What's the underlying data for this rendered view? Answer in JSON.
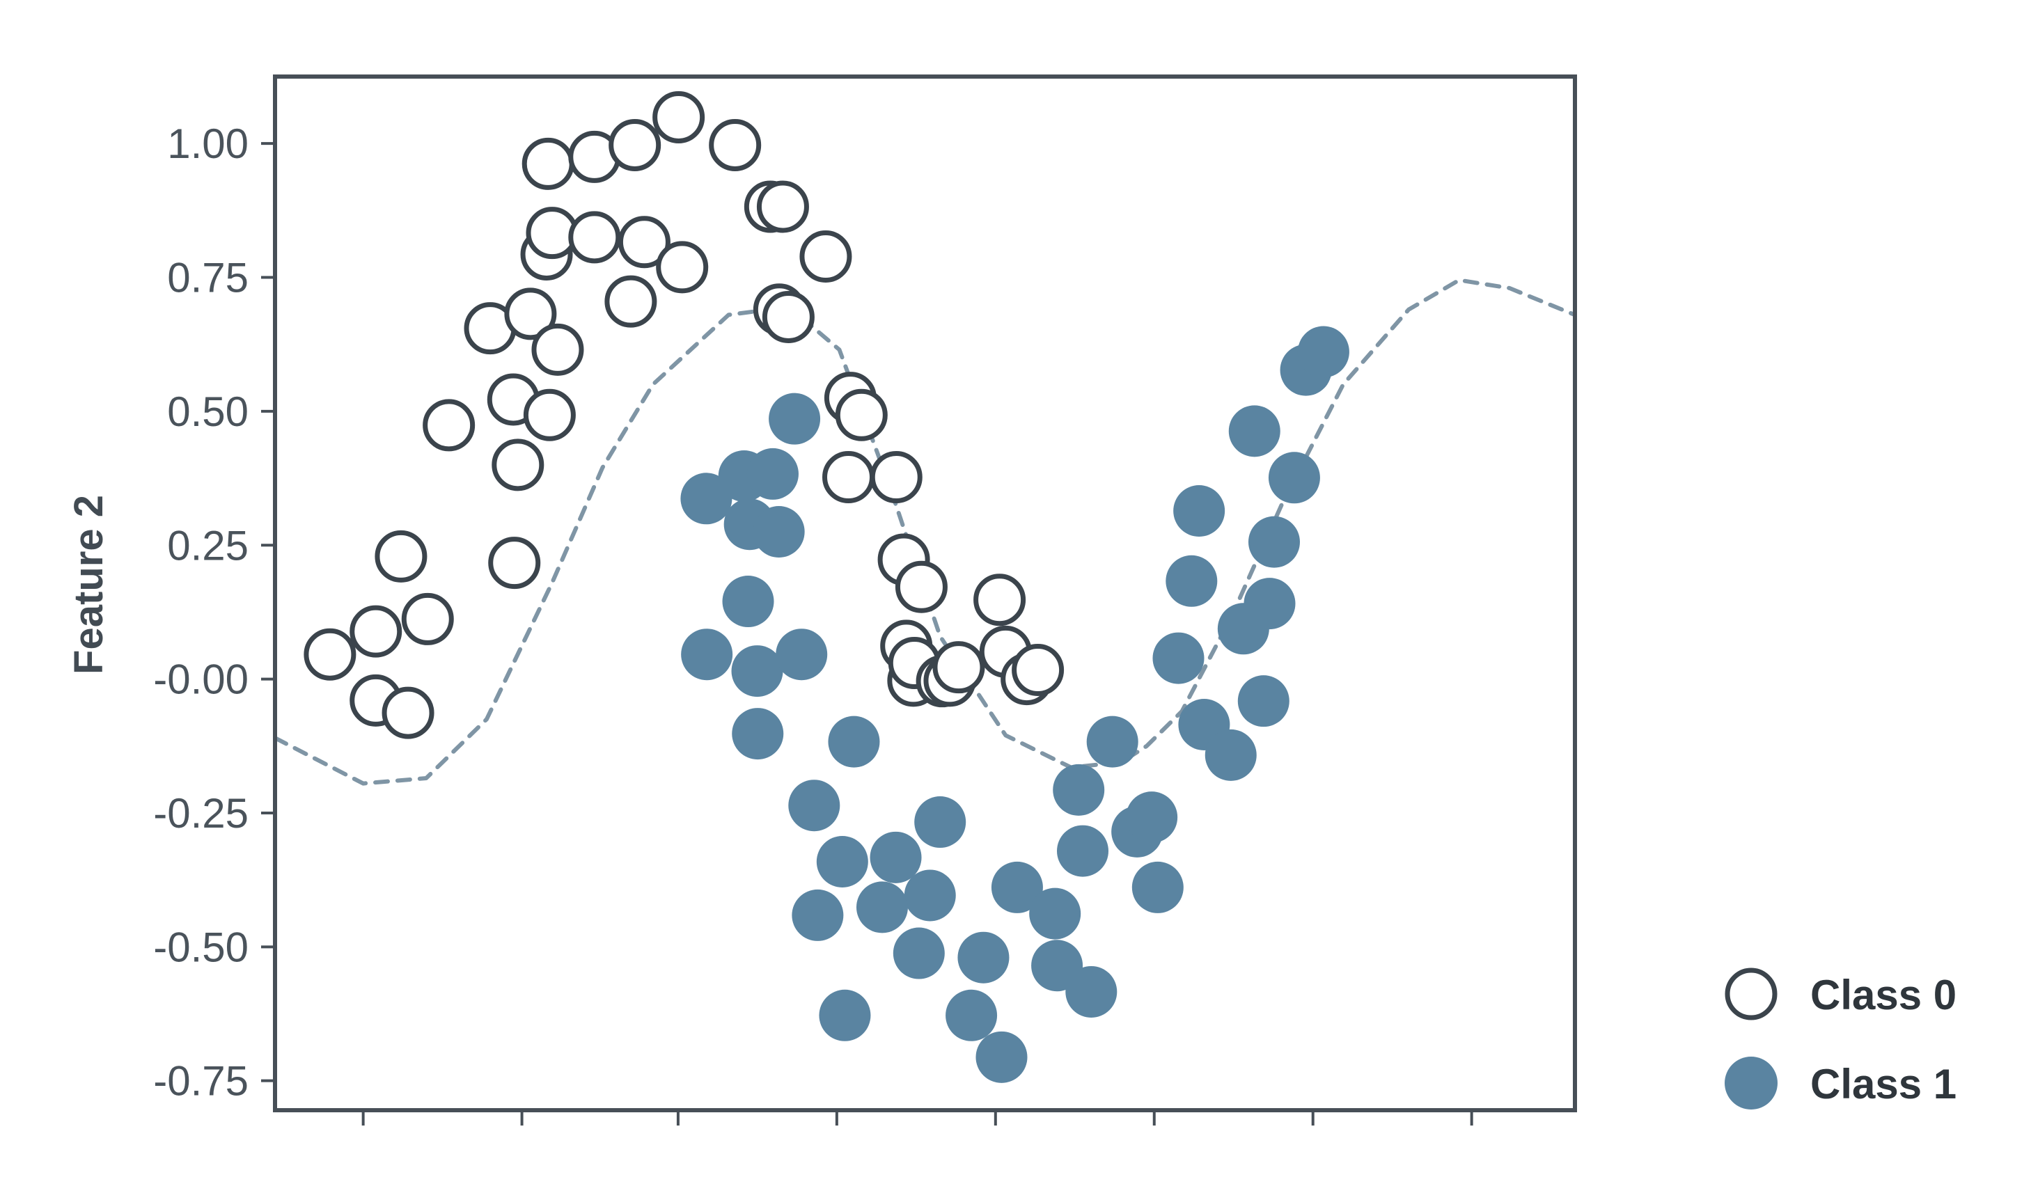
{
  "colors": {
    "frame": "#474f57",
    "class0_edge": "#3b444c",
    "class1_fill": "#5a84a1",
    "boundary": "#7f95a5",
    "tick_text": "#4a535b"
  },
  "chart_data": {
    "type": "scatter",
    "title": "",
    "xlabel": "",
    "ylabel": "Feature 2",
    "xlim": [
      -0.8,
      1.78
    ],
    "ylim": [
      -0.805,
      1.125
    ],
    "x_ticks": [
      -0.625,
      -0.31,
      0.0,
      0.315,
      0.63,
      0.945,
      1.26,
      1.575
    ],
    "x_tick_labels": [
      "",
      "",
      "",
      "",
      "",
      "",
      "",
      ""
    ],
    "y_ticks": [
      1.0,
      0.75,
      0.5,
      0.25,
      0.0,
      -0.25,
      -0.5,
      -0.75
    ],
    "y_tick_labels": [
      "1.00",
      "0.75",
      "0.50",
      "0.25",
      "-0.00",
      "-0.25",
      "-0.50",
      "-0.75"
    ],
    "grid": false,
    "legend": {
      "position": "right",
      "entries": [
        "Class 0",
        "Class 1"
      ]
    },
    "series": [
      {
        "name": "Class 0",
        "marker": "hollow-circle",
        "x": [
          -0.691,
          -0.6,
          -0.6,
          -0.536,
          -0.55,
          -0.497,
          -0.455,
          -0.373,
          -0.325,
          -0.318,
          -0.327,
          -0.293,
          -0.261,
          -0.258,
          -0.255,
          -0.239,
          -0.25,
          -0.166,
          -0.166,
          -0.094,
          -0.086,
          -0.067,
          0.001,
          0.008,
          0.113,
          0.183,
          0.201,
          0.208,
          0.219,
          0.293,
          0.342,
          0.338,
          0.364,
          0.433,
          0.448,
          0.483,
          0.467,
          0.453,
          0.469,
          0.524,
          0.539,
          0.557,
          0.638,
          0.65,
          0.692,
          0.714
        ],
        "y": [
          0.046,
          0.089,
          -0.04,
          -0.063,
          0.229,
          0.112,
          0.474,
          0.655,
          0.217,
          0.4,
          0.522,
          0.682,
          0.793,
          0.962,
          0.493,
          0.615,
          0.833,
          0.975,
          0.825,
          0.705,
          0.997,
          0.816,
          1.049,
          0.769,
          0.997,
          0.882,
          0.69,
          0.882,
          0.676,
          0.789,
          0.525,
          0.377,
          0.493,
          0.377,
          0.223,
          0.172,
          -0.003,
          0.062,
          0.03,
          -0.004,
          -0.003,
          0.022,
          0.148,
          0.051,
          -0.0,
          0.017
        ]
      },
      {
        "name": "Class 1",
        "marker": "filled-circle",
        "x": [
          0.056,
          0.142,
          0.057,
          0.231,
          0.131,
          0.139,
          0.2,
          0.157,
          0.188,
          0.158,
          0.245,
          0.277,
          0.27,
          0.349,
          0.326,
          0.331,
          0.432,
          0.5,
          0.478,
          0.405,
          0.52,
          0.606,
          0.582,
          0.673,
          0.642,
          0.752,
          0.795,
          0.748,
          0.803,
          0.82,
          0.862,
          0.911,
          0.94,
          0.952,
          0.993,
          1.019,
          1.044,
          1.034,
          1.097,
          1.122,
          1.144,
          1.174,
          1.162,
          1.183,
          1.246,
          1.223,
          1.281
        ],
        "y": [
          0.337,
          0.289,
          0.046,
          0.486,
          0.379,
          0.145,
          0.275,
          0.015,
          0.383,
          -0.102,
          0.046,
          -0.441,
          -0.236,
          -0.117,
          -0.341,
          -0.628,
          -0.333,
          -0.404,
          -0.512,
          -0.426,
          -0.267,
          -0.52,
          -0.628,
          -0.389,
          -0.706,
          -0.535,
          -0.207,
          -0.438,
          -0.321,
          -0.584,
          -0.117,
          -0.285,
          -0.258,
          -0.389,
          0.039,
          0.183,
          -0.085,
          0.314,
          -0.142,
          0.094,
          0.463,
          0.141,
          -0.041,
          0.256,
          0.577,
          0.376,
          0.611
        ]
      }
    ],
    "decision_boundary": {
      "style": "dashed",
      "x": [
        -0.8,
        -0.625,
        -0.5,
        -0.38,
        -0.25,
        -0.15,
        -0.05,
        0.1,
        0.22,
        0.32,
        0.42,
        0.52,
        0.65,
        0.78,
        0.88,
        0.93,
        1.0,
        1.1,
        1.2,
        1.32,
        1.45,
        1.55,
        1.65,
        1.78
      ],
      "y": [
        -0.11,
        -0.195,
        -0.185,
        -0.075,
        0.18,
        0.395,
        0.55,
        0.68,
        0.695,
        0.615,
        0.36,
        0.08,
        -0.105,
        -0.165,
        -0.155,
        -0.125,
        -0.06,
        0.12,
        0.33,
        0.55,
        0.69,
        0.745,
        0.73,
        0.68
      ]
    }
  }
}
